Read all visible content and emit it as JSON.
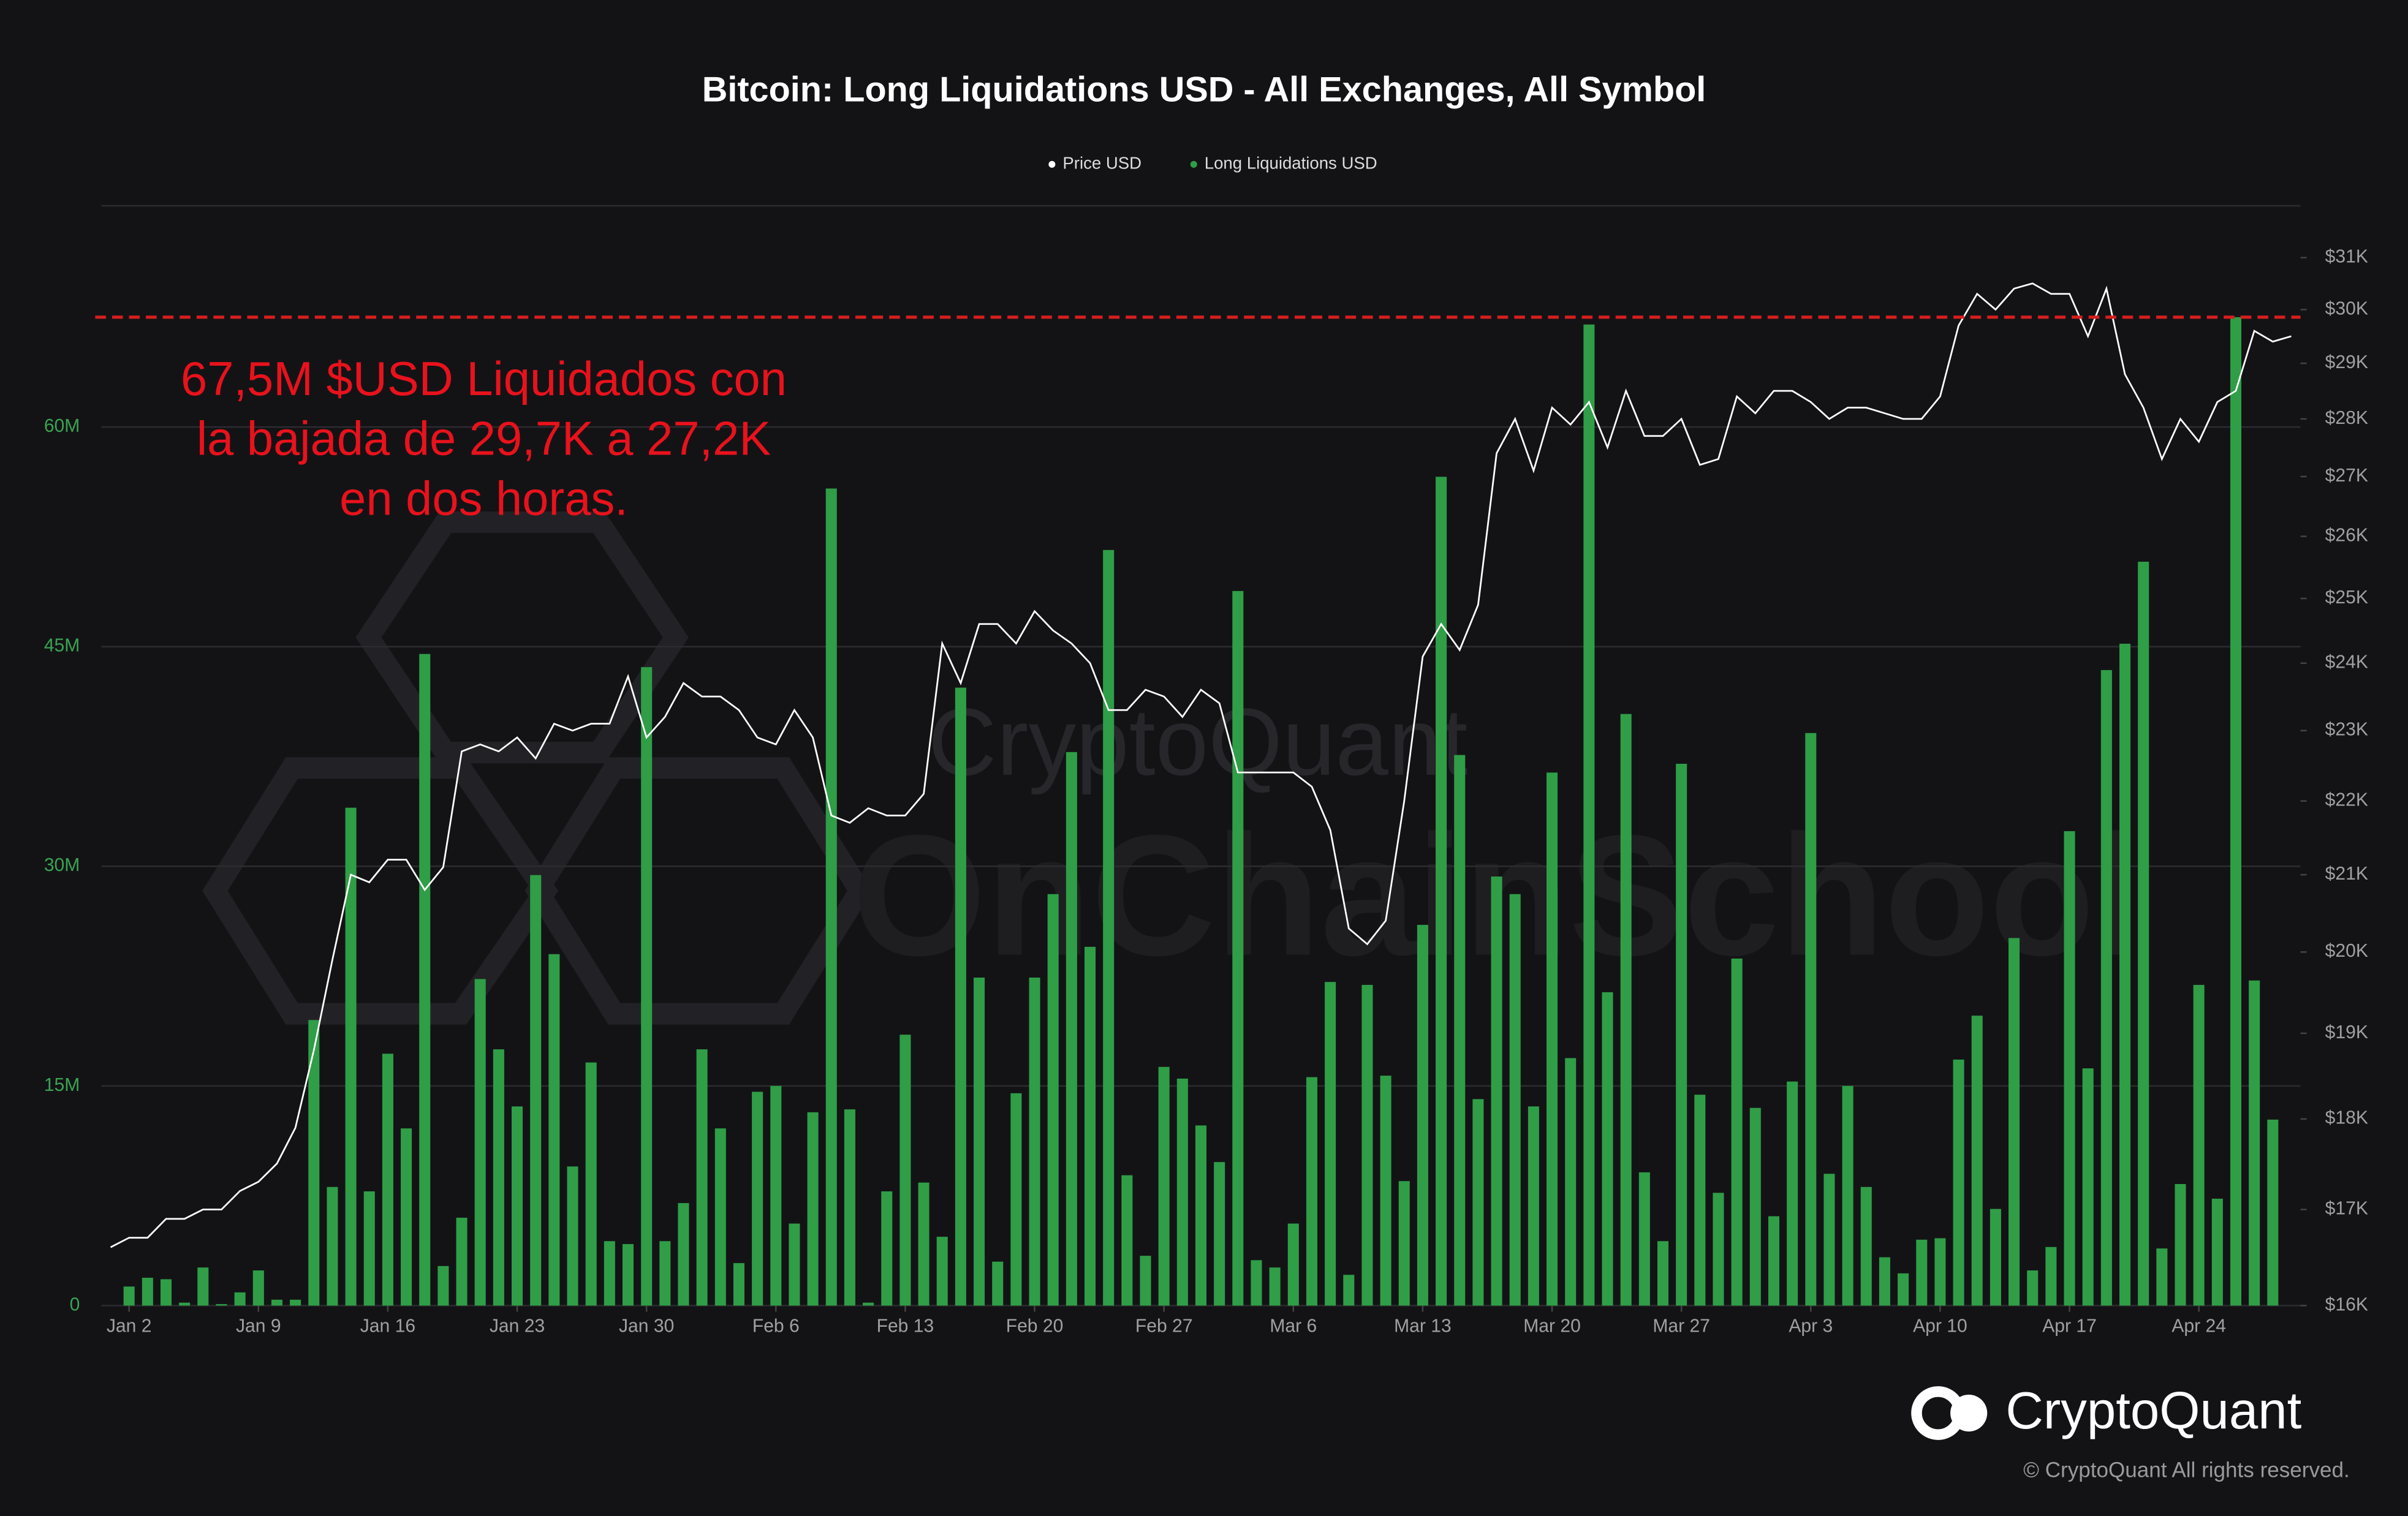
{
  "chart_data": {
    "type": "bar",
    "title": "Bitcoin: Long Liquidations USD - All Exchanges, All Symbol",
    "categories": [
      null,
      "Jan 2",
      null,
      null,
      null,
      null,
      null,
      null,
      "Jan 9",
      null,
      null,
      null,
      null,
      null,
      null,
      "Jan 16",
      null,
      null,
      null,
      null,
      null,
      null,
      "Jan 23",
      null,
      null,
      null,
      null,
      null,
      null,
      "Jan 30",
      null,
      null,
      null,
      null,
      null,
      null,
      "Feb 6",
      null,
      null,
      null,
      null,
      null,
      null,
      "Feb 13",
      null,
      null,
      null,
      null,
      null,
      null,
      "Feb 20",
      null,
      null,
      null,
      null,
      null,
      null,
      "Feb 27",
      null,
      null,
      null,
      null,
      null,
      null,
      "Mar 6",
      null,
      null,
      null,
      null,
      null,
      null,
      "Mar 13",
      null,
      null,
      null,
      null,
      null,
      null,
      "Mar 20",
      null,
      null,
      null,
      null,
      null,
      null,
      "Mar 27",
      null,
      null,
      null,
      null,
      null,
      null,
      "Apr 3",
      null,
      null,
      null,
      null,
      null,
      null,
      "Apr 10",
      null,
      null,
      null,
      null,
      null,
      null,
      "Apr 17",
      null,
      null,
      null,
      null,
      null,
      null,
      "Apr 24",
      null,
      null,
      null,
      null,
      null
    ],
    "series": [
      {
        "name": "Price USD",
        "type": "line",
        "axis": "y2",
        "color": "#ffffff",
        "values": [
          16600,
          16700,
          16700,
          16900,
          16900,
          17000,
          17000,
          17200,
          17300,
          17500,
          17900,
          18800,
          19900,
          21000,
          20900,
          21200,
          21200,
          20800,
          21100,
          22700,
          22800,
          22700,
          22900,
          22600,
          23100,
          23000,
          23100,
          23100,
          23800,
          22900,
          23200,
          23700,
          23500,
          23500,
          23300,
          22900,
          22800,
          23300,
          22900,
          21800,
          21700,
          21900,
          21800,
          21800,
          22100,
          24300,
          23700,
          24600,
          24600,
          24300,
          24800,
          24500,
          24300,
          24000,
          23300,
          23300,
          23600,
          23500,
          23200,
          23600,
          23400,
          22400,
          22400,
          22400,
          22400,
          22200,
          21600,
          20300,
          20100,
          20400,
          22000,
          24100,
          24600,
          24200,
          24900,
          27400,
          28000,
          27100,
          28200,
          27900,
          28300,
          27500,
          28500,
          27700,
          27700,
          28000,
          27200,
          27300,
          28400,
          28100,
          28500,
          28500,
          28300,
          28000,
          28200,
          28200,
          28100,
          28000,
          28000,
          28400,
          29700,
          30300,
          30000,
          30400,
          30500,
          30300,
          30300,
          29500,
          30400,
          28800,
          28200,
          27300,
          28000,
          27600,
          28300,
          28500,
          29600,
          29400,
          29500
        ]
      },
      {
        "name": "Long Liquidations USD",
        "type": "bar",
        "color": "#2f9e47",
        "values": [
          null,
          1300000,
          1900000,
          1800000,
          200000,
          2600000,
          100000,
          900000,
          2400000,
          400000,
          400000,
          19500000,
          8100000,
          34000000,
          7800000,
          17200000,
          12100000,
          44500000,
          2700000,
          6000000,
          22300000,
          17500000,
          13600000,
          29400000,
          24000000,
          9500000,
          16600000,
          4400000,
          4200000,
          43600000,
          4400000,
          7000000,
          17500000,
          12100000,
          2900000,
          14600000,
          15000000,
          5600000,
          13200000,
          55800000,
          13400000,
          200000,
          7800000,
          18500000,
          8400000,
          4700000,
          42200000,
          22400000,
          3000000,
          14500000,
          22400000,
          28100000,
          37800000,
          24500000,
          51600000,
          8900000,
          3400000,
          16300000,
          15500000,
          12300000,
          9800000,
          48800000,
          3100000,
          2600000,
          5600000,
          15600000,
          22100000,
          2100000,
          21900000,
          15700000,
          8500000,
          26000000,
          56600000,
          37600000,
          14100000,
          29300000,
          28100000,
          13600000,
          36400000,
          16900000,
          67000000,
          21400000,
          40400000,
          9100000,
          4400000,
          37000000,
          14400000,
          7700000,
          23700000,
          13500000,
          6100000,
          15300000,
          39100000,
          9000000,
          15000000,
          8100000,
          3300000,
          2200000,
          4500000,
          4600000,
          16800000,
          19800000,
          6600000,
          25100000,
          2400000,
          4000000,
          32400000,
          16200000,
          43400000,
          45200000,
          50800000,
          3900000,
          8300000,
          21900000,
          7300000,
          67500000,
          22200000,
          12700000,
          null
        ]
      }
    ],
    "ylim": [
      0,
      75000000
    ],
    "yticks": [
      0,
      {
        "value": 15000000,
        "label": "15M"
      },
      {
        "value": 30000000,
        "label": "30M"
      },
      {
        "value": 45000000,
        "label": "45M"
      },
      {
        "value": 60000000,
        "label": "60M"
      }
    ],
    "y2lim": [
      16000,
      32000
    ],
    "y2scale": "log",
    "y2ticks": [
      {
        "value": 16000,
        "label": "$16K"
      },
      {
        "value": 17000,
        "label": "$17K"
      },
      {
        "value": 18000,
        "label": "$18K"
      },
      {
        "value": 19000,
        "label": "$19K"
      },
      {
        "value": 20000,
        "label": "$20K"
      },
      {
        "value": 21000,
        "label": "$21K"
      },
      {
        "value": 22000,
        "label": "$22K"
      },
      {
        "value": 23000,
        "label": "$23K"
      },
      {
        "value": 24000,
        "label": "$24K"
      },
      {
        "value": 25000,
        "label": "$25K"
      },
      {
        "value": 26000,
        "label": "$26K"
      },
      {
        "value": 27000,
        "label": "$27K"
      },
      {
        "value": 28000,
        "label": "$28K"
      },
      {
        "value": 29000,
        "label": "$29K"
      },
      {
        "value": 30000,
        "label": "$30K"
      },
      {
        "value": 31000,
        "label": "$31K"
      }
    ],
    "grid": true,
    "legend": "top",
    "reference_line": {
      "value": 67500000,
      "color": "#d81e1e"
    },
    "annotation": {
      "lines": [
        "67,5M $USD Liquidados con",
        "la bajada de 29,7K a 27,2K",
        "en dos horas."
      ],
      "color": "#e8121c"
    },
    "watermark": [
      "CryptoQuant",
      "OnChainSchool"
    ],
    "logo_text": "CryptoQuant",
    "copyright": "© CryptoQuant All rights reserved."
  }
}
